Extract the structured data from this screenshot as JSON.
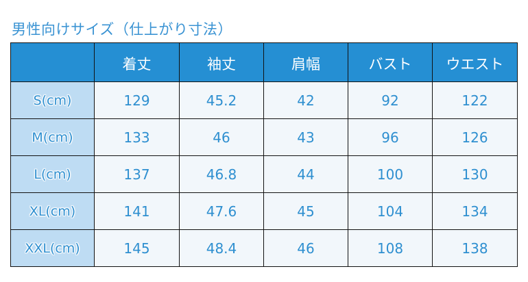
{
  "title": "男性向けサイズ（仕上がり寸法）",
  "headers": [
    "",
    "着丈",
    "袖丈",
    "肩幅",
    "バスト",
    "ウエスト"
  ],
  "rows": [
    {
      "label": "S(cm)",
      "values": [
        "129",
        "45.2",
        "42",
        "92",
        "122"
      ]
    },
    {
      "label": "M(cm)",
      "values": [
        "133",
        "46",
        "43",
        "96",
        "126"
      ]
    },
    {
      "label": "L(cm)",
      "values": [
        "137",
        "46.8",
        "44",
        "100",
        "130"
      ]
    },
    {
      "label": "XL(cm)",
      "values": [
        "141",
        "47.6",
        "45",
        "104",
        "134"
      ]
    },
    {
      "label": "XXL(cm)",
      "values": [
        "145",
        "48.4",
        "46",
        "108",
        "138"
      ]
    }
  ],
  "colors": {
    "header": "#258fd3",
    "row_label_bg": "#bedcf3",
    "cell_bg": "#f2f7fb",
    "text": "#2e8fd0"
  }
}
